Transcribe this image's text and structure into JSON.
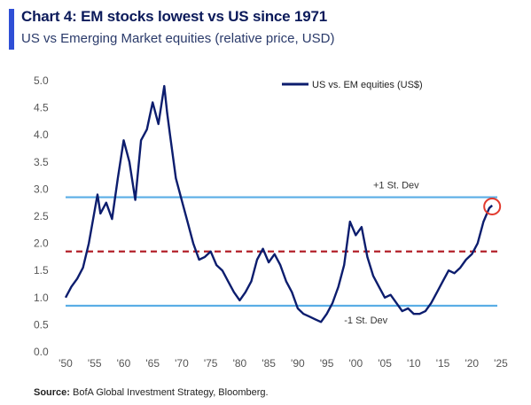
{
  "header": {
    "title": "Chart 4: EM stocks lowest vs US since 1971",
    "subtitle": "US vs Emerging Market equities (relative price, USD)"
  },
  "footer": {
    "source_label": "Source:",
    "source_text": "BofA Global Investment Strategy, Bloomberg."
  },
  "colors": {
    "accent": "#2f4fd6",
    "series": "#0c1d6e",
    "band": "#5aaee6",
    "mean": "#b3202a",
    "highlight_circle": "#e23a2e"
  },
  "chart_data": {
    "type": "line",
    "title": "Chart 4: EM stocks lowest vs US since 1971",
    "subtitle": "US vs Emerging Market equities (relative price, USD)",
    "xlim": [
      1950,
      2025
    ],
    "ylim": [
      0.0,
      5.0
    ],
    "x_ticks": [
      1950,
      1955,
      1960,
      1965,
      1970,
      1975,
      1980,
      1985,
      1990,
      1995,
      2000,
      2005,
      2010,
      2015,
      2020,
      2025
    ],
    "x_tick_labels": [
      "'50",
      "'55",
      "'60",
      "'65",
      "'70",
      "'75",
      "'80",
      "'85",
      "'90",
      "'95",
      "'00",
      "'05",
      "'10",
      "'15",
      "'20",
      "'25"
    ],
    "y_ticks": [
      0.0,
      0.5,
      1.0,
      1.5,
      2.0,
      2.5,
      3.0,
      3.5,
      4.0,
      4.5,
      5.0
    ],
    "y_tick_labels": [
      "0.0",
      "0.5",
      "1.0",
      "1.5",
      "2.0",
      "2.5",
      "3.0",
      "3.5",
      "4.0",
      "4.5",
      "5.0"
    ],
    "legend": {
      "position": "top-right",
      "entries": [
        "US vs. EM equities (US$)"
      ]
    },
    "reference_lines": [
      {
        "label": "+1 St. Dev",
        "y": 2.85,
        "style": "solid"
      },
      {
        "label": "",
        "y": 1.85,
        "style": "dashed"
      },
      {
        "label": "-1 St. Dev",
        "y": 0.85,
        "style": "solid"
      }
    ],
    "highlight": {
      "x": 2023.5,
      "y": 2.68
    },
    "series": [
      {
        "name": "US vs. EM equities (US$)",
        "x": [
          1950,
          1951,
          1952,
          1953,
          1954,
          1955,
          1955.5,
          1956,
          1957,
          1958,
          1959,
          1960,
          1961,
          1962,
          1963,
          1964,
          1965,
          1966,
          1967,
          1967.5,
          1968,
          1969,
          1970,
          1971,
          1972,
          1973,
          1974,
          1975,
          1976,
          1977,
          1978,
          1979,
          1980,
          1981,
          1982,
          1983,
          1984,
          1985,
          1986,
          1987,
          1988,
          1989,
          1990,
          1991,
          1992,
          1993,
          1994,
          1995,
          1996,
          1997,
          1998,
          1999,
          2000,
          2001,
          2002,
          2003,
          2004,
          2005,
          2006,
          2007,
          2008,
          2009,
          2010,
          2011,
          2012,
          2013,
          2014,
          2015,
          2016,
          2017,
          2018,
          2019,
          2020,
          2021,
          2022,
          2023,
          2023.5
        ],
        "y": [
          1.0,
          1.2,
          1.35,
          1.55,
          2.0,
          2.6,
          2.9,
          2.55,
          2.75,
          2.45,
          3.2,
          3.9,
          3.5,
          2.8,
          3.9,
          4.1,
          4.6,
          4.2,
          4.9,
          4.4,
          4.0,
          3.2,
          2.8,
          2.4,
          2.0,
          1.7,
          1.75,
          1.85,
          1.6,
          1.5,
          1.3,
          1.1,
          0.95,
          1.1,
          1.3,
          1.7,
          1.9,
          1.65,
          1.8,
          1.6,
          1.3,
          1.1,
          0.8,
          0.7,
          0.65,
          0.6,
          0.55,
          0.7,
          0.9,
          1.2,
          1.6,
          2.4,
          2.15,
          2.3,
          1.75,
          1.4,
          1.2,
          1.0,
          1.05,
          0.9,
          0.75,
          0.8,
          0.7,
          0.7,
          0.75,
          0.9,
          1.1,
          1.3,
          1.5,
          1.45,
          1.55,
          1.7,
          1.8,
          2.0,
          2.4,
          2.65,
          2.7
        ]
      }
    ]
  }
}
